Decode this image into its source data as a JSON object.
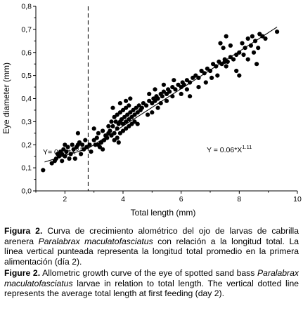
{
  "chart_data": {
    "type": "scatter",
    "xlabel": "Total length (mm)",
    "ylabel": "Eye diameter (mm)",
    "xlim": [
      1,
      10
    ],
    "ylim": [
      0,
      0.8
    ],
    "x_ticks": [
      {
        "v": 2,
        "label": "2"
      },
      {
        "v": 4,
        "label": "4"
      },
      {
        "v": 6,
        "label": "6"
      },
      {
        "v": 8,
        "label": "8"
      },
      {
        "v": 10,
        "label": "10"
      }
    ],
    "y_ticks": [
      {
        "v": 0.0,
        "label": "0,0"
      },
      {
        "v": 0.1,
        "label": "0,1"
      },
      {
        "v": 0.2,
        "label": "0,2"
      },
      {
        "v": 0.3,
        "label": "0,3"
      },
      {
        "v": 0.4,
        "label": "0,4"
      },
      {
        "v": 0.5,
        "label": "0,5"
      },
      {
        "v": 0.6,
        "label": "0,6"
      },
      {
        "v": 0.7,
        "label": "0,7"
      },
      {
        "v": 0.8,
        "label": "0,8"
      }
    ],
    "first_feeding_total_length": 2.8,
    "equations": {
      "left": {
        "base": "Y= 0.11*X",
        "exp": "0.5"
      },
      "right": {
        "base": "Y = 0.06*X",
        "exp": "1.11"
      }
    },
    "fit_lines": [
      {
        "x": [
          1.3,
          2.8
        ],
        "y": [
          0.125,
          0.184
        ]
      },
      {
        "x": [
          2.8,
          9.3
        ],
        "y": [
          0.184,
          0.71
        ]
      }
    ],
    "points": [
      [
        1.25,
        0.09
      ],
      [
        1.55,
        0.12
      ],
      [
        1.7,
        0.14
      ],
      [
        1.8,
        0.15
      ],
      [
        1.85,
        0.17
      ],
      [
        1.9,
        0.16
      ],
      [
        1.95,
        0.18
      ],
      [
        2.0,
        0.15
      ],
      [
        2.05,
        0.17
      ],
      [
        2.1,
        0.19
      ],
      [
        1.75,
        0.16
      ],
      [
        1.65,
        0.13
      ],
      [
        1.9,
        0.13
      ],
      [
        2.0,
        0.2
      ],
      [
        2.2,
        0.16
      ],
      [
        2.3,
        0.18
      ],
      [
        2.35,
        0.14
      ],
      [
        2.4,
        0.19
      ],
      [
        2.5,
        0.21
      ],
      [
        2.55,
        0.16
      ],
      [
        2.6,
        0.2
      ],
      [
        2.65,
        0.18
      ],
      [
        2.7,
        0.22
      ],
      [
        2.75,
        0.19
      ],
      [
        2.45,
        0.2
      ],
      [
        2.25,
        0.2
      ],
      [
        2.15,
        0.14
      ],
      [
        2.85,
        0.2
      ],
      [
        2.9,
        0.17
      ],
      [
        3.0,
        0.22
      ],
      [
        3.05,
        0.2
      ],
      [
        3.1,
        0.23
      ],
      [
        3.15,
        0.2
      ],
      [
        3.2,
        0.19
      ],
      [
        3.25,
        0.21
      ],
      [
        3.3,
        0.18
      ],
      [
        3.35,
        0.22
      ],
      [
        3.4,
        0.24
      ],
      [
        3.45,
        0.23
      ],
      [
        3.5,
        0.25
      ],
      [
        3.55,
        0.26
      ],
      [
        3.6,
        0.24
      ],
      [
        3.65,
        0.28
      ],
      [
        3.7,
        0.25
      ],
      [
        3.75,
        0.3
      ],
      [
        3.8,
        0.27
      ],
      [
        3.85,
        0.29
      ],
      [
        3.9,
        0.3
      ],
      [
        3.95,
        0.31
      ],
      [
        4.0,
        0.29
      ],
      [
        4.05,
        0.32
      ],
      [
        4.1,
        0.3
      ],
      [
        4.15,
        0.33
      ],
      [
        4.2,
        0.31
      ],
      [
        4.25,
        0.34
      ],
      [
        4.3,
        0.32
      ],
      [
        4.35,
        0.35
      ],
      [
        4.4,
        0.33
      ],
      [
        4.45,
        0.36
      ],
      [
        4.5,
        0.34
      ],
      [
        4.55,
        0.37
      ],
      [
        4.6,
        0.35
      ],
      [
        4.65,
        0.36
      ],
      [
        4.7,
        0.38
      ],
      [
        3.5,
        0.28
      ],
      [
        3.6,
        0.3
      ],
      [
        3.7,
        0.32
      ],
      [
        3.8,
        0.33
      ],
      [
        3.9,
        0.34
      ],
      [
        4.0,
        0.35
      ],
      [
        4.1,
        0.36
      ],
      [
        4.2,
        0.37
      ],
      [
        3.7,
        0.22
      ],
      [
        3.8,
        0.23
      ],
      [
        3.9,
        0.25
      ],
      [
        4.0,
        0.26
      ],
      [
        4.1,
        0.27
      ],
      [
        4.2,
        0.28
      ],
      [
        4.3,
        0.29
      ],
      [
        4.4,
        0.3
      ],
      [
        3.65,
        0.36
      ],
      [
        3.9,
        0.38
      ],
      [
        4.1,
        0.39
      ],
      [
        4.25,
        0.4
      ],
      [
        3.0,
        0.27
      ],
      [
        4.5,
        0.29
      ],
      [
        3.3,
        0.26
      ],
      [
        3.15,
        0.25
      ],
      [
        2.45,
        0.25
      ],
      [
        3.85,
        0.21
      ],
      [
        4.8,
        0.37
      ],
      [
        4.9,
        0.39
      ],
      [
        5.0,
        0.38
      ],
      [
        5.05,
        0.4
      ],
      [
        5.1,
        0.39
      ],
      [
        5.15,
        0.41
      ],
      [
        5.2,
        0.4
      ],
      [
        5.3,
        0.42
      ],
      [
        5.35,
        0.41
      ],
      [
        5.4,
        0.43
      ],
      [
        5.5,
        0.42
      ],
      [
        5.55,
        0.44
      ],
      [
        5.6,
        0.43
      ],
      [
        5.7,
        0.45
      ],
      [
        5.8,
        0.44
      ],
      [
        5.9,
        0.46
      ],
      [
        6.0,
        0.45
      ],
      [
        6.05,
        0.47
      ],
      [
        6.1,
        0.46
      ],
      [
        6.2,
        0.48
      ],
      [
        6.3,
        0.47
      ],
      [
        6.4,
        0.49
      ],
      [
        4.85,
        0.33
      ],
      [
        5.0,
        0.34
      ],
      [
        5.2,
        0.36
      ],
      [
        5.3,
        0.38
      ],
      [
        5.5,
        0.39
      ],
      [
        5.7,
        0.41
      ],
      [
        6.0,
        0.42
      ],
      [
        6.2,
        0.44
      ],
      [
        4.9,
        0.42
      ],
      [
        5.4,
        0.46
      ],
      [
        5.75,
        0.48
      ],
      [
        5.1,
        0.44
      ],
      [
        6.5,
        0.5
      ],
      [
        6.6,
        0.49
      ],
      [
        6.7,
        0.52
      ],
      [
        6.8,
        0.51
      ],
      [
        6.9,
        0.53
      ],
      [
        7.0,
        0.52
      ],
      [
        7.1,
        0.55
      ],
      [
        7.2,
        0.54
      ],
      [
        7.3,
        0.56
      ],
      [
        7.4,
        0.55
      ],
      [
        7.5,
        0.57
      ],
      [
        7.6,
        0.56
      ],
      [
        7.7,
        0.58
      ],
      [
        7.8,
        0.57
      ],
      [
        7.9,
        0.59
      ],
      [
        8.0,
        0.6
      ],
      [
        6.6,
        0.45
      ],
      [
        6.85,
        0.47
      ],
      [
        7.05,
        0.49
      ],
      [
        7.25,
        0.5
      ],
      [
        7.45,
        0.62
      ],
      [
        7.5,
        0.56
      ],
      [
        7.35,
        0.64
      ],
      [
        7.7,
        0.63
      ],
      [
        7.9,
        0.52
      ],
      [
        8.15,
        0.59
      ],
      [
        8.2,
        0.62
      ],
      [
        8.3,
        0.57
      ],
      [
        8.5,
        0.6
      ],
      [
        8.6,
        0.55
      ],
      [
        8.4,
        0.63
      ],
      [
        8.1,
        0.64
      ],
      [
        8.3,
        0.66
      ],
      [
        8.45,
        0.67
      ],
      [
        8.55,
        0.65
      ],
      [
        8.7,
        0.68
      ],
      [
        8.8,
        0.67
      ],
      [
        7.55,
        0.67
      ],
      [
        9.3,
        0.69
      ],
      [
        8.0,
        0.5
      ],
      [
        6.3,
        0.41
      ],
      [
        7.55,
        0.54
      ],
      [
        8.65,
        0.62
      ],
      [
        8.9,
        0.66
      ]
    ]
  },
  "caption_es": {
    "label": "Figura 2.",
    "text1": " Curva de crecimiento alométrico del ojo de larvas de cabrilla arenera ",
    "species": "Paralabrax maculatofasciatus",
    "text2": " con relación a la longitud total. La línea vertical punteada representa la longitud total promedio en la primera alimentación (día 2)."
  },
  "caption_en": {
    "label": "Figure 2.",
    "text1": " Allometric growth curve of the eye of spotted sand bass ",
    "species": "Paralabrax maculatofasciatus",
    "text2": " larvae in relation to total length. The vertical dotted line represents the average total length at first feeding (day 2)."
  }
}
